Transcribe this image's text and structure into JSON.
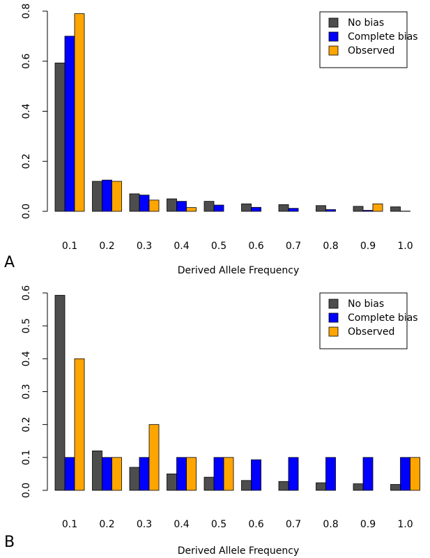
{
  "colors": {
    "no_bias": "#4d4d4d",
    "complete_bias": "#0000ff",
    "observed": "#ffa500"
  },
  "chart_data": [
    {
      "type": "bar",
      "panel_label": "A",
      "xlabel": "Derived Allele Frequency",
      "ylabel": "",
      "categories": [
        "0.1",
        "0.2",
        "0.3",
        "0.4",
        "0.5",
        "0.6",
        "0.7",
        "0.8",
        "0.9",
        "1.0"
      ],
      "yticks": [
        "0.0",
        "0.2",
        "0.4",
        "0.6",
        "0.8"
      ],
      "ylim": [
        0,
        0.8
      ],
      "grid": false,
      "legend_position": "top-right",
      "series": [
        {
          "name": "No bias",
          "color_key": "no_bias",
          "values": [
            0.593,
            0.12,
            0.07,
            0.05,
            0.04,
            0.03,
            0.027,
            0.023,
            0.02,
            0.018
          ]
        },
        {
          "name": "Complete bias",
          "color_key": "complete_bias",
          "values": [
            0.7,
            0.125,
            0.065,
            0.04,
            0.025,
            0.016,
            0.012,
            0.007,
            0.004,
            0.001
          ]
        },
        {
          "name": "Observed",
          "color_key": "observed",
          "values": [
            0.79,
            0.12,
            0.045,
            0.015,
            0.0,
            0.0,
            0.0,
            0.0,
            0.03,
            0.0
          ]
        }
      ]
    },
    {
      "type": "bar",
      "panel_label": "B",
      "xlabel": "Derived Allele Frequency",
      "ylabel": "",
      "categories": [
        "0.1",
        "0.2",
        "0.3",
        "0.4",
        "0.5",
        "0.6",
        "0.7",
        "0.8",
        "0.9",
        "1.0"
      ],
      "yticks": [
        "0.0",
        "0.1",
        "0.2",
        "0.3",
        "0.4",
        "0.5",
        "0.6"
      ],
      "ylim": [
        0,
        0.6
      ],
      "grid": false,
      "legend_position": "top-right",
      "series": [
        {
          "name": "No bias",
          "color_key": "no_bias",
          "values": [
            0.593,
            0.12,
            0.07,
            0.05,
            0.04,
            0.03,
            0.027,
            0.023,
            0.02,
            0.018
          ]
        },
        {
          "name": "Complete bias",
          "color_key": "complete_bias",
          "values": [
            0.1,
            0.1,
            0.1,
            0.1,
            0.1,
            0.093,
            0.1,
            0.1,
            0.1,
            0.1
          ]
        },
        {
          "name": "Observed",
          "color_key": "observed",
          "values": [
            0.4,
            0.1,
            0.2,
            0.1,
            0.1,
            0.0,
            0.0,
            0.0,
            0.0,
            0.1
          ]
        }
      ]
    }
  ]
}
